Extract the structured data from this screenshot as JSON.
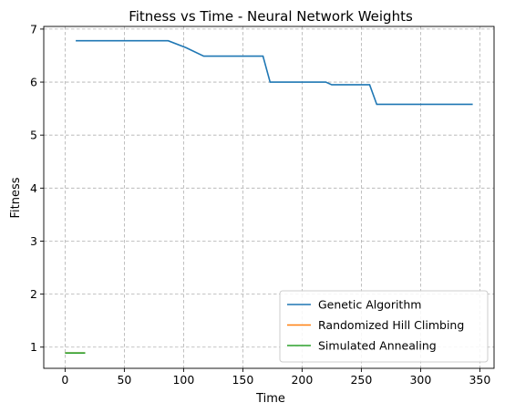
{
  "chart_data": {
    "type": "line",
    "title": "Fitness vs Time - Neural Network Weights",
    "xlabel": "Time",
    "ylabel": "Fitness",
    "xlim": [
      -18,
      362
    ],
    "ylim": [
      0.6,
      7.05
    ],
    "xticks": [
      0,
      50,
      100,
      150,
      200,
      250,
      300,
      350
    ],
    "yticks": [
      1,
      2,
      3,
      4,
      5,
      6,
      7
    ],
    "grid": true,
    "legend_position": "lower-right",
    "series": [
      {
        "name": "Genetic Algorithm",
        "color": "#1f77b4",
        "x": [
          9,
          87,
          102,
          117,
          167,
          173,
          220,
          225,
          257,
          263,
          344
        ],
        "y": [
          6.78,
          6.78,
          6.65,
          6.49,
          6.49,
          6.0,
          6.0,
          5.95,
          5.95,
          5.58,
          5.58
        ]
      },
      {
        "name": "Randomized Hill Climbing",
        "color": "#ff7f0e",
        "x": [
          0,
          17
        ],
        "y": [
          0.89,
          0.89
        ]
      },
      {
        "name": "Simulated Annealing",
        "color": "#2ca02c",
        "x": [
          0,
          17
        ],
        "y": [
          0.89,
          0.89
        ]
      }
    ]
  }
}
